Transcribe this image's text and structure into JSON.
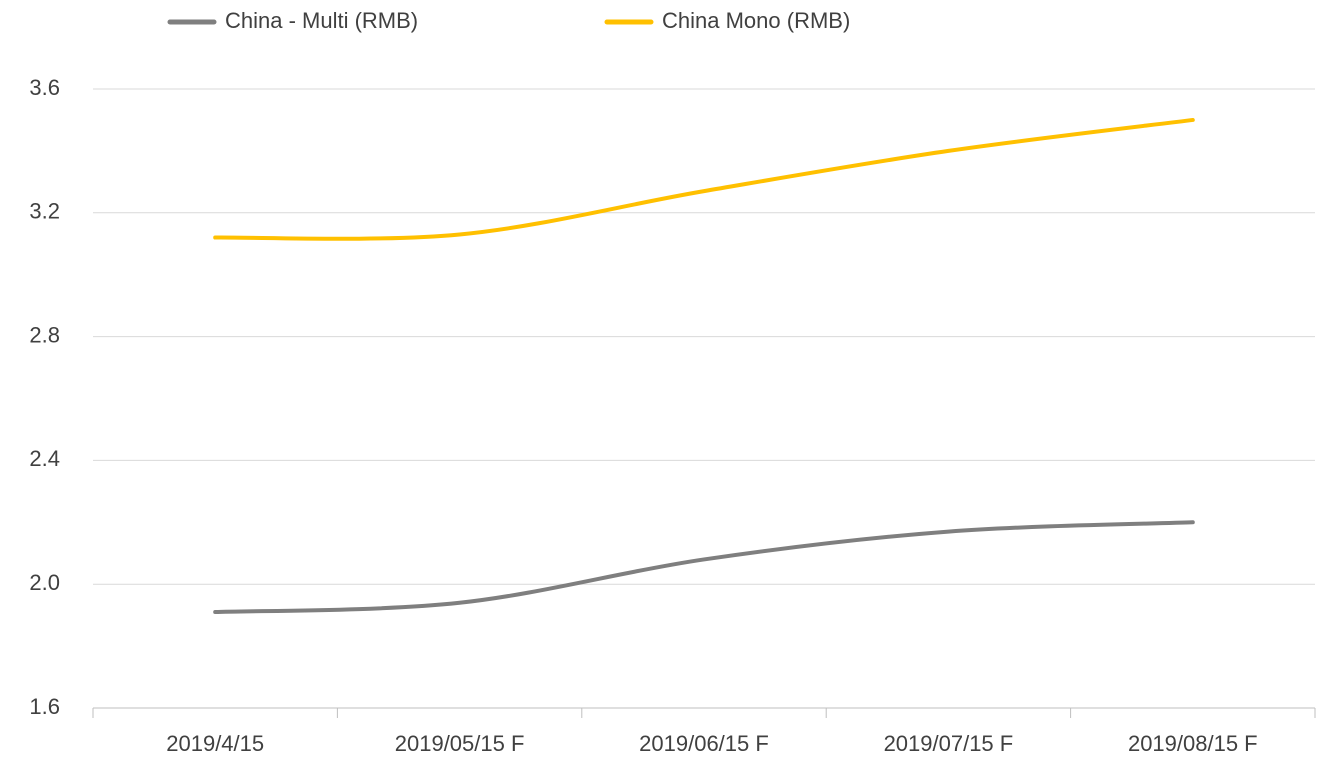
{
  "chart_data": {
    "type": "line",
    "categories": [
      "2019/4/15",
      "2019/05/15 F",
      "2019/06/15 F",
      "2019/07/15 F",
      "2019/08/15 F"
    ],
    "series": [
      {
        "name": "China - Multi (RMB)",
        "color": "#7f7f7f",
        "values": [
          1.91,
          1.94,
          2.08,
          2.17,
          2.2
        ]
      },
      {
        "name": "China Mono (RMB)",
        "color": "#ffc000",
        "values": [
          3.12,
          3.13,
          3.27,
          3.4,
          3.5
        ]
      }
    ],
    "ylim": [
      1.6,
      3.6
    ],
    "yticks": [
      1.6,
      {
        "value": 2,
        "label": "2.0"
      },
      2.4,
      2.8,
      3.2,
      3.6
    ],
    "grid": true,
    "legend": "top",
    "smooth": true
  }
}
